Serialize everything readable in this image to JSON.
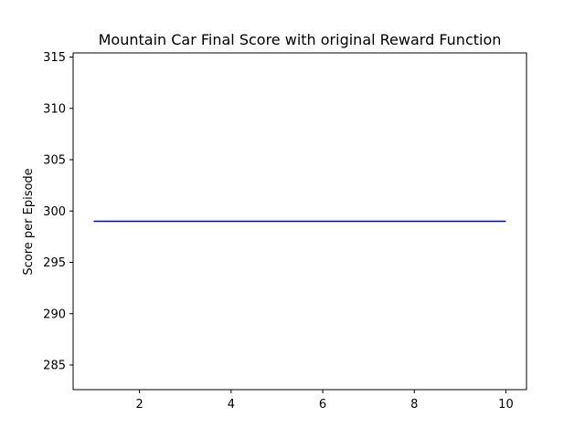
{
  "chart_data": {
    "type": "line",
    "title": "Mountain Car Final Score with original Reward Function",
    "xlabel": "",
    "ylabel": "Score per Episode",
    "xlim": [
      0.55,
      10.45
    ],
    "ylim": [
      282.6,
      315.4
    ],
    "x_ticks": [
      2,
      4,
      6,
      8,
      10
    ],
    "y_ticks": [
      285,
      290,
      295,
      300,
      305,
      310,
      315
    ],
    "grid": false,
    "series": [
      {
        "color": "#0000cc",
        "x": [
          1,
          2,
          3,
          4,
          5,
          6,
          7,
          8,
          9,
          10
        ],
        "y": [
          299,
          299,
          299,
          299,
          299,
          299,
          299,
          299,
          299,
          299
        ]
      }
    ]
  }
}
